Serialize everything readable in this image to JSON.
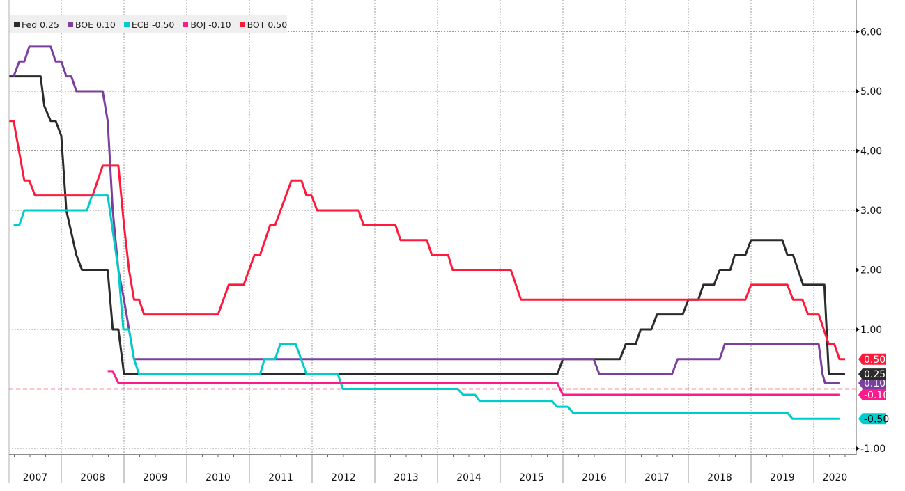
{
  "chart_data": {
    "type": "line",
    "title": "",
    "xlabel": "",
    "ylabel": "",
    "ylim": [
      -1,
      6
    ],
    "xlim": [
      2007.17,
      2020.55
    ],
    "y_ticks": [
      "6.00",
      "5.00",
      "4.00",
      "3.00",
      "2.00",
      "1.00",
      "-1.00"
    ],
    "x_ticks": [
      "2007",
      "2008",
      "2009",
      "2010",
      "2011",
      "2012",
      "2013",
      "2014",
      "2015",
      "2016",
      "2017",
      "2018",
      "2019",
      "2020"
    ],
    "grid": true,
    "legend_position": "top-left",
    "zero_line": {
      "value": 0,
      "color": "#ff1a3c",
      "style": "dashed"
    },
    "series": [
      {
        "name": "Fed",
        "legend": "Fed 0.25",
        "last": "0.25",
        "color": "#2b2b2b",
        "tag_text": "#ffffff",
        "points": [
          [
            2007.17,
            5.25
          ],
          [
            2007.67,
            5.25
          ],
          [
            2007.73,
            4.75
          ],
          [
            2007.83,
            4.5
          ],
          [
            2007.91,
            4.5
          ],
          [
            2008.0,
            4.25
          ],
          [
            2008.08,
            3.0
          ],
          [
            2008.24,
            2.25
          ],
          [
            2008.33,
            2.0
          ],
          [
            2008.74,
            2.0
          ],
          [
            2008.82,
            1.0
          ],
          [
            2008.91,
            1.0
          ],
          [
            2009.0,
            0.25
          ],
          [
            2015.91,
            0.25
          ],
          [
            2016.0,
            0.5
          ],
          [
            2016.91,
            0.5
          ],
          [
            2017.0,
            0.75
          ],
          [
            2017.16,
            0.75
          ],
          [
            2017.24,
            1.0
          ],
          [
            2017.41,
            1.0
          ],
          [
            2017.5,
            1.25
          ],
          [
            2017.91,
            1.25
          ],
          [
            2018.0,
            1.5
          ],
          [
            2018.16,
            1.5
          ],
          [
            2018.24,
            1.75
          ],
          [
            2018.41,
            1.75
          ],
          [
            2018.5,
            2.0
          ],
          [
            2018.67,
            2.0
          ],
          [
            2018.74,
            2.25
          ],
          [
            2018.91,
            2.25
          ],
          [
            2019.0,
            2.5
          ],
          [
            2019.5,
            2.5
          ],
          [
            2019.58,
            2.25
          ],
          [
            2019.67,
            2.25
          ],
          [
            2019.83,
            1.75
          ],
          [
            2020.17,
            1.75
          ],
          [
            2020.24,
            0.25
          ],
          [
            2020.5,
            0.25
          ]
        ]
      },
      {
        "name": "BOE",
        "legend": "BOE 0.10",
        "last": "0.10",
        "color": "#7b3f9e",
        "tag_text": "#ffffff",
        "points": [
          [
            2007.24,
            5.25
          ],
          [
            2007.33,
            5.5
          ],
          [
            2007.41,
            5.5
          ],
          [
            2007.49,
            5.75
          ],
          [
            2007.83,
            5.75
          ],
          [
            2007.91,
            5.5
          ],
          [
            2008.0,
            5.5
          ],
          [
            2008.08,
            5.25
          ],
          [
            2008.16,
            5.25
          ],
          [
            2008.24,
            5.0
          ],
          [
            2008.66,
            5.0
          ],
          [
            2008.74,
            4.5
          ],
          [
            2008.82,
            3.0
          ],
          [
            2008.91,
            2.0
          ],
          [
            2009.0,
            1.5
          ],
          [
            2009.08,
            1.0
          ],
          [
            2009.16,
            0.5
          ],
          [
            2016.49,
            0.5
          ],
          [
            2016.58,
            0.25
          ],
          [
            2017.74,
            0.25
          ],
          [
            2017.83,
            0.5
          ],
          [
            2018.5,
            0.5
          ],
          [
            2018.58,
            0.75
          ],
          [
            2020.08,
            0.75
          ],
          [
            2020.14,
            0.25
          ],
          [
            2020.18,
            0.1
          ],
          [
            2020.41,
            0.1
          ]
        ]
      },
      {
        "name": "ECB",
        "legend": "ECB -0.50",
        "last": "-0.50",
        "color": "#00cccc",
        "tag_text": "#000000",
        "points": [
          [
            2007.24,
            2.75
          ],
          [
            2007.33,
            2.75
          ],
          [
            2007.41,
            3.0
          ],
          [
            2008.41,
            3.0
          ],
          [
            2008.49,
            3.25
          ],
          [
            2008.74,
            3.25
          ],
          [
            2008.91,
            2.0
          ],
          [
            2008.99,
            1.0
          ],
          [
            2009.08,
            1.0
          ],
          [
            2009.16,
            0.5
          ],
          [
            2009.24,
            0.25
          ],
          [
            2011.17,
            0.25
          ],
          [
            2011.24,
            0.5
          ],
          [
            2011.41,
            0.5
          ],
          [
            2011.49,
            0.75
          ],
          [
            2011.74,
            0.75
          ],
          [
            2011.91,
            0.25
          ],
          [
            2012.41,
            0.25
          ],
          [
            2012.49,
            0.0
          ],
          [
            2014.32,
            0.0
          ],
          [
            2014.41,
            -0.1
          ],
          [
            2014.6,
            -0.1
          ],
          [
            2014.67,
            -0.2
          ],
          [
            2015.82,
            -0.2
          ],
          [
            2015.91,
            -0.3
          ],
          [
            2016.08,
            -0.3
          ],
          [
            2016.16,
            -0.4
          ],
          [
            2019.58,
            -0.4
          ],
          [
            2019.66,
            -0.5
          ],
          [
            2020.41,
            -0.5
          ]
        ]
      },
      {
        "name": "BOJ",
        "legend": "BOJ -0.10",
        "last": "-0.10",
        "color": "#ff1a8c",
        "tag_text": "#ffffff",
        "points": [
          [
            2008.74,
            0.3
          ],
          [
            2008.82,
            0.3
          ],
          [
            2008.91,
            0.1
          ],
          [
            2015.91,
            0.1
          ],
          [
            2016.0,
            -0.1
          ],
          [
            2020.41,
            -0.1
          ]
        ]
      },
      {
        "name": "BOT",
        "legend": "BOT 0.50",
        "last": "0.50",
        "color": "#ff1a3c",
        "tag_text": "#ffffff",
        "points": [
          [
            2007.17,
            4.5
          ],
          [
            2007.24,
            4.5
          ],
          [
            2007.41,
            3.5
          ],
          [
            2007.49,
            3.5
          ],
          [
            2007.58,
            3.25
          ],
          [
            2008.5,
            3.25
          ],
          [
            2008.66,
            3.75
          ],
          [
            2008.91,
            3.75
          ],
          [
            2009.0,
            2.75
          ],
          [
            2009.08,
            2.0
          ],
          [
            2009.16,
            1.5
          ],
          [
            2009.24,
            1.5
          ],
          [
            2009.32,
            1.25
          ],
          [
            2010.5,
            1.25
          ],
          [
            2010.67,
            1.75
          ],
          [
            2010.91,
            1.75
          ],
          [
            2011.08,
            2.25
          ],
          [
            2011.17,
            2.25
          ],
          [
            2011.33,
            2.75
          ],
          [
            2011.41,
            2.75
          ],
          [
            2011.67,
            3.5
          ],
          [
            2011.83,
            3.5
          ],
          [
            2011.91,
            3.25
          ],
          [
            2011.99,
            3.25
          ],
          [
            2012.08,
            3.0
          ],
          [
            2012.74,
            3.0
          ],
          [
            2012.82,
            2.75
          ],
          [
            2013.33,
            2.75
          ],
          [
            2013.41,
            2.5
          ],
          [
            2013.83,
            2.5
          ],
          [
            2013.91,
            2.25
          ],
          [
            2014.17,
            2.25
          ],
          [
            2014.24,
            2.0
          ],
          [
            2015.17,
            2.0
          ],
          [
            2015.33,
            1.5
          ],
          [
            2018.91,
            1.5
          ],
          [
            2019.0,
            1.75
          ],
          [
            2019.58,
            1.75
          ],
          [
            2019.67,
            1.5
          ],
          [
            2019.82,
            1.5
          ],
          [
            2019.91,
            1.25
          ],
          [
            2020.08,
            1.25
          ],
          [
            2020.24,
            0.75
          ],
          [
            2020.33,
            0.75
          ],
          [
            2020.41,
            0.5
          ],
          [
            2020.5,
            0.5
          ]
        ]
      }
    ]
  }
}
